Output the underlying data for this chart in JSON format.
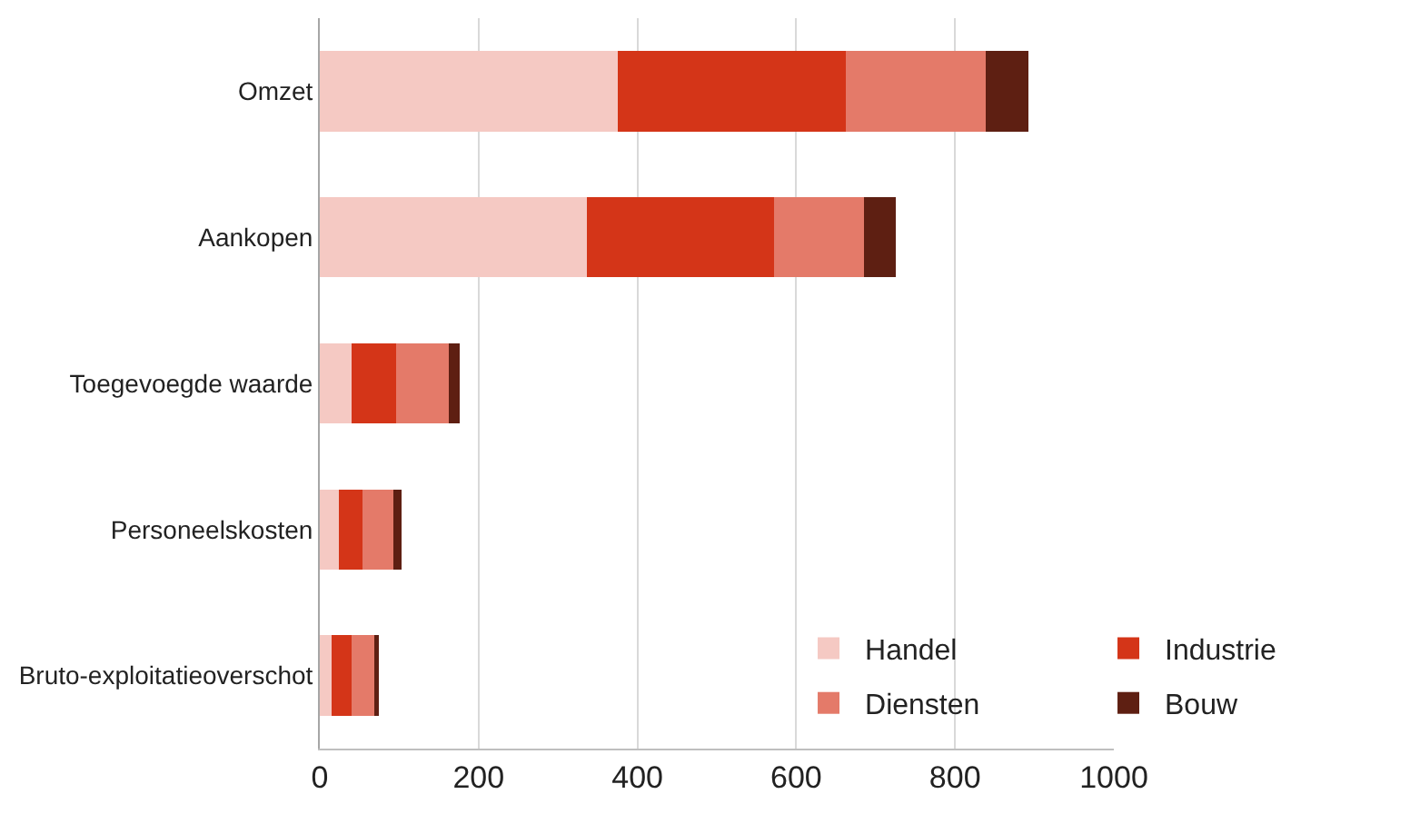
{
  "chart_data": {
    "type": "bar",
    "orientation": "horizontal",
    "stacked": true,
    "categories": [
      "Omzet",
      "Aankopen",
      "Toegevoegde waarde",
      "Personeelskosten",
      "Bruto-exploitatieoverschot"
    ],
    "series": [
      {
        "name": "Handel",
        "color": "#f5c9c3",
        "values": [
          375,
          336,
          40,
          24,
          15
        ]
      },
      {
        "name": "Industrie",
        "color": "#d43518",
        "values": [
          288,
          236,
          56,
          30,
          25
        ]
      },
      {
        "name": "Diensten",
        "color": "#e47a69",
        "values": [
          176,
          113,
          66,
          39,
          30
        ]
      },
      {
        "name": "Bouw",
        "color": "#5e1f12",
        "values": [
          54,
          40,
          14,
          10,
          4
        ]
      }
    ],
    "xlim": [
      0,
      1000
    ],
    "xticks": [
      0,
      200,
      400,
      600,
      800,
      1000
    ],
    "grid": "x",
    "legend": "bottom right"
  }
}
